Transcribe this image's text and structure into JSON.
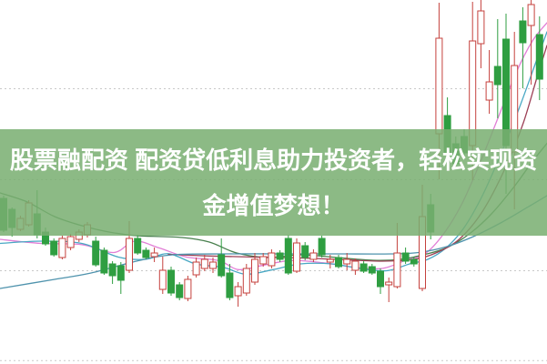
{
  "banner": {
    "line1": "股票融配资 配资贷低利息助力投资者，轻松实现资",
    "line2": "金增值梦想！",
    "bg_color": "rgba(121,175,113,0.86)",
    "text_color": "#ffffff"
  },
  "chart_data": {
    "type": "candlestick",
    "title": "",
    "price_axis": {
      "min": 8,
      "max": 24,
      "gridline_prices": [
        20.1,
        16.1,
        12.1,
        8.15
      ],
      "labels_visible": false
    },
    "x_axis": {
      "labels_visible": false,
      "n_periods": 65
    },
    "colors": {
      "up": "#c5413d",
      "up_fill": "#ffffff",
      "down": "#2f9e41",
      "grid": "#c9c9c9",
      "background": "#ffffff"
    },
    "candles": [
      [
        15.28,
        15.4,
        13.8,
        13.88
      ],
      [
        14.8,
        14.88,
        13.6,
        14.0
      ],
      [
        13.92,
        14.52,
        13.84,
        14.4
      ],
      [
        14.12,
        15.2,
        14.04,
        15.08
      ],
      [
        14.6,
        15.64,
        13.52,
        13.68
      ],
      [
        13.8,
        14.0,
        13.2,
        13.28
      ],
      [
        13.4,
        13.52,
        12.72,
        12.8
      ],
      [
        12.68,
        13.64,
        12.6,
        13.52
      ],
      [
        13.12,
        13.72,
        13.0,
        13.6
      ],
      [
        13.48,
        13.92,
        13.36,
        13.8
      ],
      [
        13.68,
        14.24,
        13.56,
        14.12
      ],
      [
        13.4,
        13.6,
        12.28,
        12.36
      ],
      [
        13.0,
        13.12,
        11.92,
        12.0
      ],
      [
        12.4,
        12.52,
        11.52,
        11.88
      ],
      [
        12.32,
        12.48,
        11.08,
        11.68
      ],
      [
        12.12,
        14.28,
        12.0,
        13.52
      ],
      [
        13.52,
        13.68,
        12.8,
        12.88
      ],
      [
        13.0,
        13.12,
        12.6,
        12.68
      ],
      [
        12.72,
        13.12,
        12.48,
        12.88
      ],
      [
        11.28,
        12.72,
        11.08,
        12.12
      ],
      [
        12.12,
        12.28,
        11.0,
        11.12
      ],
      [
        11.48,
        11.6,
        10.8,
        10.92
      ],
      [
        10.88,
        11.88,
        10.76,
        11.72
      ],
      [
        11.92,
        12.68,
        11.8,
        12.48
      ],
      [
        12.2,
        12.8,
        12.08,
        12.6
      ],
      [
        12.2,
        12.68,
        12.0,
        12.48
      ],
      [
        12.8,
        13.52,
        11.8,
        11.88
      ],
      [
        12.0,
        12.4,
        10.8,
        10.92
      ],
      [
        11.0,
        11.6,
        10.52,
        11.4
      ],
      [
        11.12,
        12.4,
        11.0,
        12.2
      ],
      [
        11.6,
        12.88,
        11.48,
        12.6
      ],
      [
        12.4,
        12.88,
        12.28,
        12.72
      ],
      [
        12.32,
        13.04,
        12.2,
        12.88
      ],
      [
        12.88,
        13.0,
        12.48,
        12.6
      ],
      [
        13.52,
        13.68,
        11.92,
        12.0
      ],
      [
        12.08,
        13.52,
        12.0,
        13.32
      ],
      [
        13.2,
        13.36,
        12.56,
        12.68
      ],
      [
        12.6,
        13.04,
        12.48,
        12.88
      ],
      [
        13.52,
        13.64,
        12.68,
        12.8
      ],
      [
        12.48,
        12.8,
        12.2,
        12.6
      ],
      [
        12.68,
        12.8,
        12.2,
        12.28
      ],
      [
        12.4,
        12.88,
        12.12,
        12.6
      ],
      [
        12.12,
        12.64,
        11.92,
        12.52
      ],
      [
        12.4,
        12.52,
        12.0,
        12.08
      ],
      [
        12.28,
        12.4,
        11.92,
        12.0
      ],
      [
        12.08,
        12.2,
        11.08,
        11.4
      ],
      [
        11.48,
        11.8,
        10.72,
        11.6
      ],
      [
        11.4,
        14.2,
        11.32,
        12.88
      ],
      [
        12.88,
        13.12,
        12.4,
        12.52
      ],
      [
        12.6,
        12.72,
        12.28,
        12.4
      ],
      [
        11.32,
        15.88,
        11.2,
        14.48
      ],
      [
        15.0,
        15.48,
        13.48,
        13.8
      ],
      [
        18.12,
        23.88,
        16.12,
        22.32
      ],
      [
        18.92,
        19.72,
        16.92,
        17.2
      ],
      [
        17.68,
        18.0,
        16.56,
        16.8
      ],
      [
        18.0,
        18.32,
        17.0,
        17.28
      ],
      [
        17.6,
        23.92,
        16.08,
        22.2
      ],
      [
        22.08,
        24.0,
        21.0,
        23.52
      ],
      [
        19.6,
        21.8,
        19.0,
        20.4
      ],
      [
        21.08,
        23.16,
        18.8,
        20.28
      ],
      [
        22.28,
        23.4,
        15.48,
        17.6
      ],
      [
        17.32,
        22.6,
        14.8,
        21.12
      ],
      [
        23.08,
        23.68,
        20.12,
        22.12
      ],
      [
        22.88,
        24.0,
        20.28,
        23.8
      ],
      [
        22.48,
        23.28,
        19.6,
        20.52
      ]
    ],
    "ma_lines": [
      {
        "name": "ma-pink",
        "color": "#e27ed6",
        "points": [
          [
            0,
            13.48
          ],
          [
            45,
            13.3
          ],
          [
            90,
            13.25
          ],
          [
            125,
            12.9
          ],
          [
            148,
            13.4
          ],
          [
            175,
            13.1
          ],
          [
            205,
            12.7
          ],
          [
            240,
            12.55
          ],
          [
            262,
            12.15
          ],
          [
            290,
            12.35
          ],
          [
            320,
            12.55
          ],
          [
            355,
            12.45
          ],
          [
            390,
            12.25
          ],
          [
            420,
            12.2
          ],
          [
            445,
            12.55
          ],
          [
            467,
            12.85
          ],
          [
            487,
            13.7
          ],
          [
            507,
            15.0
          ],
          [
            527,
            16.8
          ],
          [
            547,
            18.8
          ],
          [
            567,
            20.8
          ],
          [
            585,
            22.2
          ],
          [
            601,
            23.0
          ]
        ]
      },
      {
        "name": "ma-cyan",
        "color": "#49a8c4",
        "points": [
          [
            0,
            13.3
          ],
          [
            45,
            13.4
          ],
          [
            90,
            13.3
          ],
          [
            130,
            12.7
          ],
          [
            160,
            12.6
          ],
          [
            185,
            12.85
          ],
          [
            215,
            12.4
          ],
          [
            245,
            12.25
          ],
          [
            270,
            11.95
          ],
          [
            300,
            12.15
          ],
          [
            330,
            12.4
          ],
          [
            365,
            12.4
          ],
          [
            395,
            12.2
          ],
          [
            425,
            12.1
          ],
          [
            450,
            12.4
          ],
          [
            470,
            12.6
          ],
          [
            490,
            13.1
          ],
          [
            510,
            14.0
          ],
          [
            530,
            15.4
          ],
          [
            550,
            17.2
          ],
          [
            570,
            19.2
          ],
          [
            590,
            21.4
          ],
          [
            601,
            22.6
          ]
        ]
      },
      {
        "name": "ma-dark-green",
        "color": "#49804e",
        "points": [
          [
            0,
            15.52
          ],
          [
            30,
            15.12
          ],
          [
            60,
            14.48
          ],
          [
            90,
            14.08
          ],
          [
            120,
            13.8
          ],
          [
            150,
            13.64
          ],
          [
            200,
            13.56
          ],
          [
            230,
            13.36
          ],
          [
            260,
            12.88
          ],
          [
            295,
            12.68
          ],
          [
            330,
            12.8
          ],
          [
            370,
            12.68
          ],
          [
            410,
            12.56
          ],
          [
            440,
            12.6
          ],
          [
            465,
            12.8
          ],
          [
            490,
            13.1
          ],
          [
            515,
            13.7
          ],
          [
            540,
            14.6
          ],
          [
            565,
            15.8
          ],
          [
            585,
            16.9
          ],
          [
            601,
            17.7
          ]
        ]
      },
      {
        "name": "ma-maroon",
        "color": "#9d4056",
        "points": [
          [
            185,
            12.82
          ],
          [
            230,
            12.75
          ],
          [
            280,
            12.7
          ],
          [
            330,
            12.66
          ],
          [
            380,
            12.58
          ],
          [
            420,
            12.52
          ],
          [
            455,
            12.6
          ],
          [
            480,
            12.9
          ],
          [
            505,
            13.5
          ],
          [
            530,
            14.7
          ],
          [
            555,
            16.6
          ],
          [
            575,
            18.6
          ],
          [
            590,
            20.6
          ],
          [
            601,
            22.0
          ]
        ]
      },
      {
        "name": "ma-steel",
        "color": "#4f93ad",
        "points": [
          [
            0,
            11.32
          ],
          [
            60,
            11.72
          ],
          [
            100,
            12.0
          ],
          [
            150,
            12.52
          ],
          [
            190,
            12.8
          ],
          [
            250,
            12.84
          ],
          [
            310,
            12.84
          ],
          [
            370,
            12.84
          ],
          [
            430,
            12.84
          ],
          [
            460,
            12.9
          ],
          [
            490,
            13.15
          ],
          [
            520,
            13.6
          ],
          [
            550,
            14.2
          ],
          [
            580,
            14.9
          ],
          [
            601,
            15.4
          ]
        ]
      }
    ]
  }
}
